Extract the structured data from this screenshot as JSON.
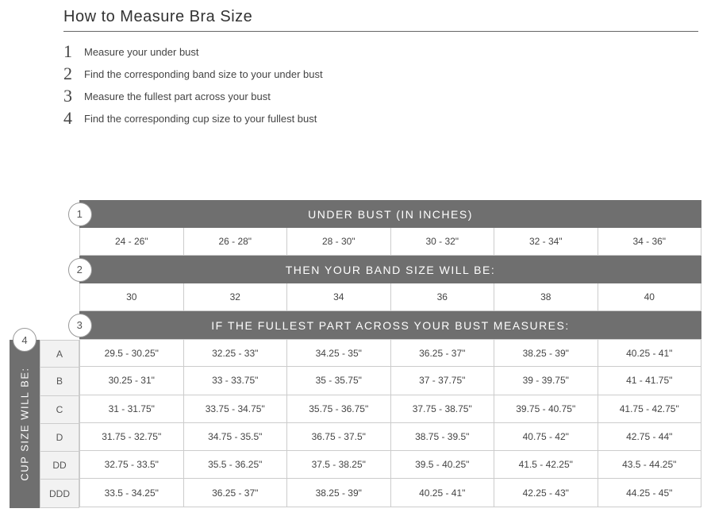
{
  "title": "How to Measure Bra Size",
  "steps": [
    {
      "n": "1",
      "text": "Measure your under bust"
    },
    {
      "n": "2",
      "text": "Find the corresponding band size to your under bust"
    },
    {
      "n": "3",
      "text": "Measure the fullest part across your bust"
    },
    {
      "n": "4",
      "text": "Find the corresponding cup size to your fullest bust"
    }
  ],
  "chart": {
    "header1": {
      "badge": "1",
      "label": "UNDER BUST (IN INCHES)"
    },
    "under_bust": [
      "24 - 26\"",
      "26 - 28\"",
      "28 - 30\"",
      "30 - 32\"",
      "32 - 34\"",
      "34 - 36\""
    ],
    "header2": {
      "badge": "2",
      "label": "THEN YOUR BAND SIZE WILL BE:"
    },
    "band_size": [
      "30",
      "32",
      "34",
      "36",
      "38",
      "40"
    ],
    "header3": {
      "badge": "3",
      "label": "IF THE FULLEST PART ACROSS YOUR BUST MEASURES:"
    },
    "vert": {
      "badge": "4",
      "label": "CUP SIZE WILL BE:"
    },
    "cup_letters": [
      "A",
      "B",
      "C",
      "D",
      "DD",
      "DDD"
    ],
    "cup_rows": [
      [
        "29.5 - 30.25\"",
        "32.25  - 33\"",
        "34.25 - 35\"",
        "36.25 - 37\"",
        "38.25 - 39\"",
        "40.25 - 41\""
      ],
      [
        "30.25 - 31\"",
        "33 - 33.75\"",
        "35 - 35.75\"",
        "37 - 37.75\"",
        "39 - 39.75\"",
        "41 - 41.75\""
      ],
      [
        "31 - 31.75\"",
        "33.75  - 34.75\"",
        "35.75 - 36.75\"",
        "37.75 - 38.75\"",
        "39.75 - 40.75\"",
        "41.75 - 42.75\""
      ],
      [
        "31.75 - 32.75\"",
        "34.75  - 35.5\"",
        "36.75 - 37.5\"",
        "38.75 - 39.5\"",
        "40.75 - 42\"",
        "42.75 - 44\""
      ],
      [
        "32.75 - 33.5\"",
        "35.5 - 36.25\"",
        "37.5 - 38.25\"",
        "39.5 - 40.25\"",
        "41.5 - 42.25\"",
        "43.5 - 44.25\""
      ],
      [
        "33.5 - 34.25\"",
        "36.25 - 37\"",
        "38.25 - 39\"",
        "40.25 - 41\"",
        "42.25 - 43\"",
        "44.25 - 45\""
      ]
    ],
    "colors": {
      "header_bg": "#6f6f6f",
      "header_text": "#ffffff",
      "cell_border": "#cccccc",
      "cell_text": "#444444",
      "letter_bg": "#f2f2f2",
      "badge_bg": "#ffffff",
      "badge_border": "#999999"
    }
  }
}
